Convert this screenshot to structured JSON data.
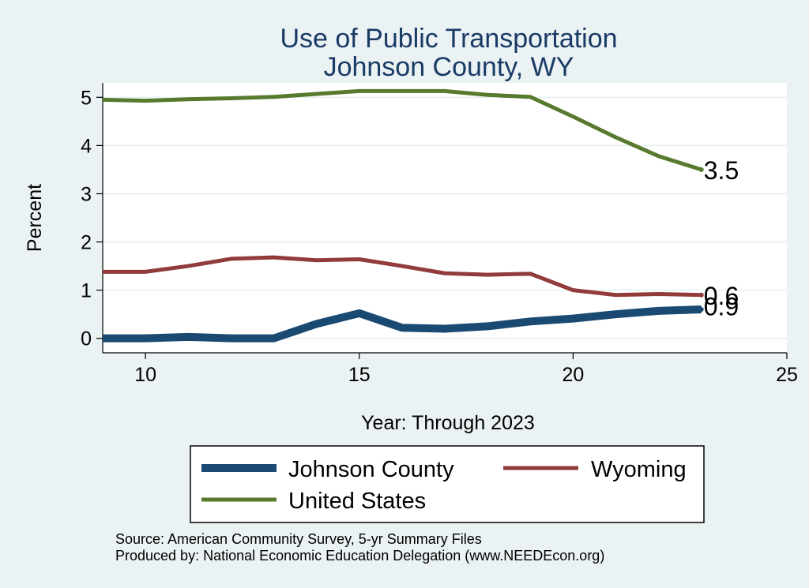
{
  "chart_data": {
    "type": "line",
    "title": [
      "Use of Public Transportation",
      "Johnson County, WY"
    ],
    "xlabel": "Year: Through 2023",
    "ylabel": "Percent",
    "xlim": [
      9,
      25
    ],
    "ylim": [
      -0.3,
      5.3
    ],
    "xticks": [
      10,
      15,
      20,
      25
    ],
    "yticks": [
      0,
      1,
      2,
      3,
      4,
      5
    ],
    "grid": true,
    "legend_position": "bottom",
    "x": [
      9,
      10,
      11,
      12,
      13,
      14,
      15,
      16,
      17,
      18,
      19,
      20,
      21,
      22,
      23
    ],
    "series": [
      {
        "name": "Johnson County",
        "color": "#1a4a72",
        "values": [
          0.0,
          0.0,
          0.03,
          0.0,
          0.0,
          0.3,
          0.52,
          0.22,
          0.2,
          0.25,
          0.35,
          0.41,
          0.5,
          0.57,
          0.6
        ],
        "end_label": "0.6"
      },
      {
        "name": "Wyoming",
        "color": "#913b3b",
        "values": [
          1.38,
          1.38,
          1.5,
          1.65,
          1.68,
          1.62,
          1.64,
          1.5,
          1.35,
          1.32,
          1.34,
          1.0,
          0.9,
          0.92,
          0.9
        ],
        "end_label": "0.9"
      },
      {
        "name": "United States",
        "color": "#587a2e",
        "values": [
          4.95,
          4.93,
          4.96,
          4.98,
          5.01,
          5.07,
          5.13,
          5.13,
          5.13,
          5.05,
          5.01,
          4.6,
          4.17,
          3.78,
          3.5
        ],
        "end_label": "3.5"
      }
    ],
    "source_lines": [
      "Source: American Community Survey, 5-yr Summary Files",
      "Produced by: National Economic Education Delegation (www.NEEDEcon.org)"
    ]
  }
}
